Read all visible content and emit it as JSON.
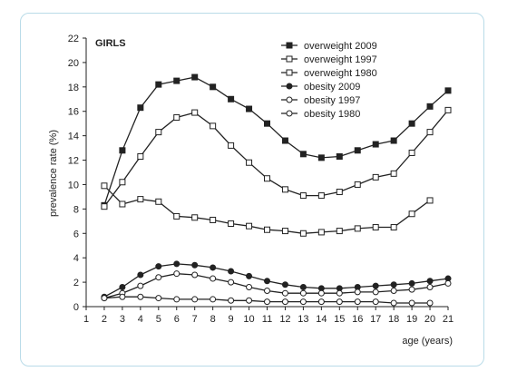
{
  "chart_data": {
    "type": "line",
    "title": "GIRLS",
    "xlabel": "age (years)",
    "ylabel": "prevalence rate (%)",
    "xlim": [
      1,
      21
    ],
    "ylim": [
      0,
      22
    ],
    "x_ticks": [
      "1",
      "2",
      "3",
      "4",
      "5",
      "6",
      "7",
      "8",
      "9",
      "10",
      "11",
      "12",
      "13",
      "14",
      "15",
      "16",
      "17",
      "18",
      "19",
      "20",
      "21"
    ],
    "y_ticks": [
      "0",
      "2",
      "4",
      "6",
      "8",
      "10",
      "12",
      "14",
      "16",
      "18",
      "20",
      "22"
    ],
    "legend_position": "top-right",
    "grid": false,
    "series": [
      {
        "name": "overweight 2009",
        "marker": "square-filled",
        "x": [
          2,
          3,
          4,
          5,
          6,
          7,
          8,
          9,
          10,
          11,
          12,
          13,
          14,
          15,
          16,
          17,
          18,
          19,
          20,
          21
        ],
        "y": [
          8.3,
          12.8,
          16.3,
          18.2,
          18.5,
          18.8,
          18.0,
          17.0,
          16.2,
          15.0,
          13.6,
          12.5,
          12.2,
          12.3,
          12.8,
          13.3,
          13.6,
          15.0,
          16.4,
          17.7
        ]
      },
      {
        "name": "overweight 1997",
        "marker": "square-open",
        "x": [
          2,
          3,
          4,
          5,
          6,
          7,
          8,
          9,
          10,
          11,
          12,
          13,
          14,
          15,
          16,
          17,
          18,
          19,
          20,
          21
        ],
        "y": [
          8.2,
          10.2,
          12.3,
          14.3,
          15.5,
          15.9,
          14.8,
          13.2,
          11.8,
          10.5,
          9.6,
          9.1,
          9.1,
          9.4,
          10.0,
          10.6,
          10.9,
          12.6,
          14.3,
          16.1
        ]
      },
      {
        "name": "overweight 1980",
        "marker": "square-open",
        "x": [
          2,
          3,
          4,
          5,
          6,
          7,
          8,
          9,
          10,
          11,
          12,
          13,
          14,
          15,
          16,
          17,
          18,
          19,
          20
        ],
        "y": [
          9.9,
          8.4,
          8.8,
          8.6,
          7.4,
          7.3,
          7.1,
          6.8,
          6.6,
          6.3,
          6.2,
          6.0,
          6.1,
          6.2,
          6.4,
          6.5,
          6.5,
          7.6,
          8.7
        ]
      },
      {
        "name": "obesity 2009",
        "marker": "circle-filled",
        "x": [
          2,
          3,
          4,
          5,
          6,
          7,
          8,
          9,
          10,
          11,
          12,
          13,
          14,
          15,
          16,
          17,
          18,
          19,
          20,
          21
        ],
        "y": [
          0.8,
          1.6,
          2.6,
          3.3,
          3.5,
          3.4,
          3.2,
          2.9,
          2.5,
          2.1,
          1.8,
          1.6,
          1.5,
          1.5,
          1.6,
          1.7,
          1.8,
          1.9,
          2.1,
          2.3
        ]
      },
      {
        "name": "obesity 1997",
        "marker": "circle-open",
        "x": [
          2,
          3,
          4,
          5,
          6,
          7,
          8,
          9,
          10,
          11,
          12,
          13,
          14,
          15,
          16,
          17,
          18,
          19,
          20,
          21
        ],
        "y": [
          0.7,
          1.1,
          1.7,
          2.4,
          2.7,
          2.6,
          2.3,
          2.0,
          1.6,
          1.3,
          1.1,
          1.1,
          1.1,
          1.1,
          1.2,
          1.2,
          1.3,
          1.4,
          1.6,
          1.9
        ]
      },
      {
        "name": "obesity 1980",
        "marker": "circle-open",
        "x": [
          2,
          3,
          4,
          5,
          6,
          7,
          8,
          9,
          10,
          11,
          12,
          13,
          14,
          15,
          16,
          17,
          18,
          19,
          20
        ],
        "y": [
          0.7,
          0.8,
          0.8,
          0.7,
          0.6,
          0.6,
          0.6,
          0.5,
          0.5,
          0.4,
          0.4,
          0.4,
          0.4,
          0.4,
          0.4,
          0.4,
          0.3,
          0.3,
          0.3
        ]
      }
    ]
  },
  "colors": {
    "line": "#222222",
    "frame_border": "#b9dbe8",
    "open_marker_fill": "#ffffff"
  }
}
